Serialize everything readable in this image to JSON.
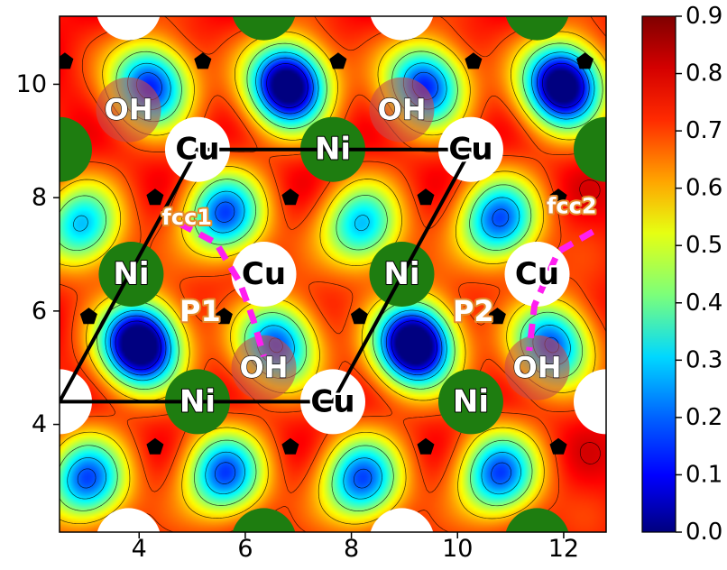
{
  "chart_data": {
    "type": "heatmap",
    "title": "",
    "xlabel": "",
    "ylabel": "",
    "xlim": [
      2.5,
      12.8
    ],
    "ylim": [
      2.1,
      11.2
    ],
    "x_ticks": [
      4,
      6,
      8,
      10,
      12
    ],
    "y_ticks": [
      4,
      6,
      8,
      10
    ],
    "colorbar": {
      "range": [
        0.0,
        0.9
      ],
      "ticks": [
        "0.0",
        "0.1",
        "0.2",
        "0.3",
        "0.4",
        "0.5",
        "0.6",
        "0.7",
        "0.8",
        "0.9"
      ],
      "colormap": "jet"
    },
    "basins": [
      {
        "x": 4.2,
        "y": 10.0,
        "depth": 0.65
      },
      {
        "x": 6.8,
        "y": 10.0,
        "depth": 0.9
      },
      {
        "x": 9.4,
        "y": 10.0,
        "depth": 0.65
      },
      {
        "x": 12.0,
        "y": 10.0,
        "depth": 0.9
      },
      {
        "x": 2.9,
        "y": 7.5,
        "depth": 0.5
      },
      {
        "x": 5.6,
        "y": 7.7,
        "depth": 0.6
      },
      {
        "x": 8.2,
        "y": 7.5,
        "depth": 0.5
      },
      {
        "x": 10.8,
        "y": 7.6,
        "depth": 0.6
      },
      {
        "x": 4.0,
        "y": 5.4,
        "depth": 0.95
      },
      {
        "x": 6.6,
        "y": 5.4,
        "depth": 0.6
      },
      {
        "x": 9.2,
        "y": 5.4,
        "depth": 0.95
      },
      {
        "x": 11.8,
        "y": 5.4,
        "depth": 0.6
      },
      {
        "x": 3.0,
        "y": 3.0,
        "depth": 0.6
      },
      {
        "x": 5.6,
        "y": 3.1,
        "depth": 0.6
      },
      {
        "x": 8.2,
        "y": 3.0,
        "depth": 0.6
      },
      {
        "x": 10.8,
        "y": 3.1,
        "depth": 0.6
      }
    ],
    "atoms": [
      {
        "label": "Cu",
        "x": 5.1,
        "y": 8.85,
        "type": "Cu"
      },
      {
        "label": "Ni",
        "x": 7.65,
        "y": 8.85,
        "type": "Ni"
      },
      {
        "label": "Cu",
        "x": 10.25,
        "y": 8.85,
        "type": "Cu"
      },
      {
        "label": "OH",
        "x": 3.8,
        "y": 9.55,
        "type": "OH"
      },
      {
        "label": "OH",
        "x": 8.95,
        "y": 9.55,
        "type": "OH"
      },
      {
        "label": "Ni",
        "x": 3.85,
        "y": 6.65,
        "type": "Ni"
      },
      {
        "label": "Cu",
        "x": 6.35,
        "y": 6.65,
        "type": "Cu"
      },
      {
        "label": "Ni",
        "x": 8.95,
        "y": 6.65,
        "type": "Ni"
      },
      {
        "label": "Cu",
        "x": 11.5,
        "y": 6.65,
        "type": "Cu"
      },
      {
        "label": "OH",
        "x": 6.35,
        "y": 5.0,
        "type": "OH"
      },
      {
        "label": "OH",
        "x": 11.5,
        "y": 5.0,
        "type": "OH"
      },
      {
        "label": "Ni",
        "x": 5.1,
        "y": 4.4,
        "type": "Ni"
      },
      {
        "label": "Cu",
        "x": 7.65,
        "y": 4.4,
        "type": "Cu"
      },
      {
        "label": "Ni",
        "x": 10.25,
        "y": 4.4,
        "type": "Ni"
      }
    ],
    "edge_atoms": [
      {
        "type": "Cu",
        "x": 3.8,
        "y": 11.35
      },
      {
        "type": "Ni",
        "x": 6.35,
        "y": 11.35
      },
      {
        "type": "Cu",
        "x": 8.95,
        "y": 11.35
      },
      {
        "type": "Ni",
        "x": 11.5,
        "y": 11.35
      },
      {
        "type": "Ni",
        "x": 2.5,
        "y": 8.85
      },
      {
        "type": "Ni",
        "x": 12.8,
        "y": 8.85
      },
      {
        "type": "Cu",
        "x": 2.5,
        "y": 4.4
      },
      {
        "type": "Cu",
        "x": 12.8,
        "y": 4.4
      },
      {
        "type": "Cu",
        "x": 3.8,
        "y": 1.95
      },
      {
        "type": "Ni",
        "x": 6.35,
        "y": 1.95
      },
      {
        "type": "Cu",
        "x": 8.95,
        "y": 1.95
      },
      {
        "type": "Ni",
        "x": 11.5,
        "y": 1.95
      }
    ],
    "pentagons": [
      [
        2.6,
        10.4
      ],
      [
        5.2,
        10.4
      ],
      [
        7.75,
        10.4
      ],
      [
        10.3,
        10.4
      ],
      [
        12.4,
        10.4
      ],
      [
        4.3,
        8.0
      ],
      [
        6.85,
        8.0
      ],
      [
        9.4,
        8.0
      ],
      [
        11.9,
        8.0
      ],
      [
        3.05,
        5.9
      ],
      [
        5.6,
        5.9
      ],
      [
        8.15,
        5.9
      ],
      [
        10.75,
        5.9
      ],
      [
        4.3,
        3.6
      ],
      [
        6.85,
        3.6
      ],
      [
        9.4,
        3.6
      ],
      [
        11.9,
        3.6
      ]
    ],
    "unit_cell": [
      [
        5.1,
        8.85
      ],
      [
        10.25,
        8.85
      ],
      [
        7.65,
        4.4
      ],
      [
        2.5,
        4.4
      ]
    ],
    "paths": [
      {
        "name": "P1",
        "points": [
          [
            4.75,
            7.55
          ],
          [
            5.45,
            7.2
          ],
          [
            5.9,
            6.5
          ],
          [
            6.15,
            5.85
          ],
          [
            6.35,
            5.2
          ]
        ],
        "label_x": 5.15,
        "label_y": 6.0
      },
      {
        "name": "P2",
        "points": [
          [
            12.55,
            7.4
          ],
          [
            11.9,
            7.05
          ],
          [
            11.45,
            6.1
          ],
          [
            11.35,
            5.3
          ]
        ],
        "label_x": 10.3,
        "label_y": 6.0
      }
    ],
    "site_labels": [
      {
        "text": "fcc1",
        "x": 4.9,
        "y": 7.65
      },
      {
        "text": "fcc2",
        "x": 12.15,
        "y": 7.85
      }
    ]
  }
}
